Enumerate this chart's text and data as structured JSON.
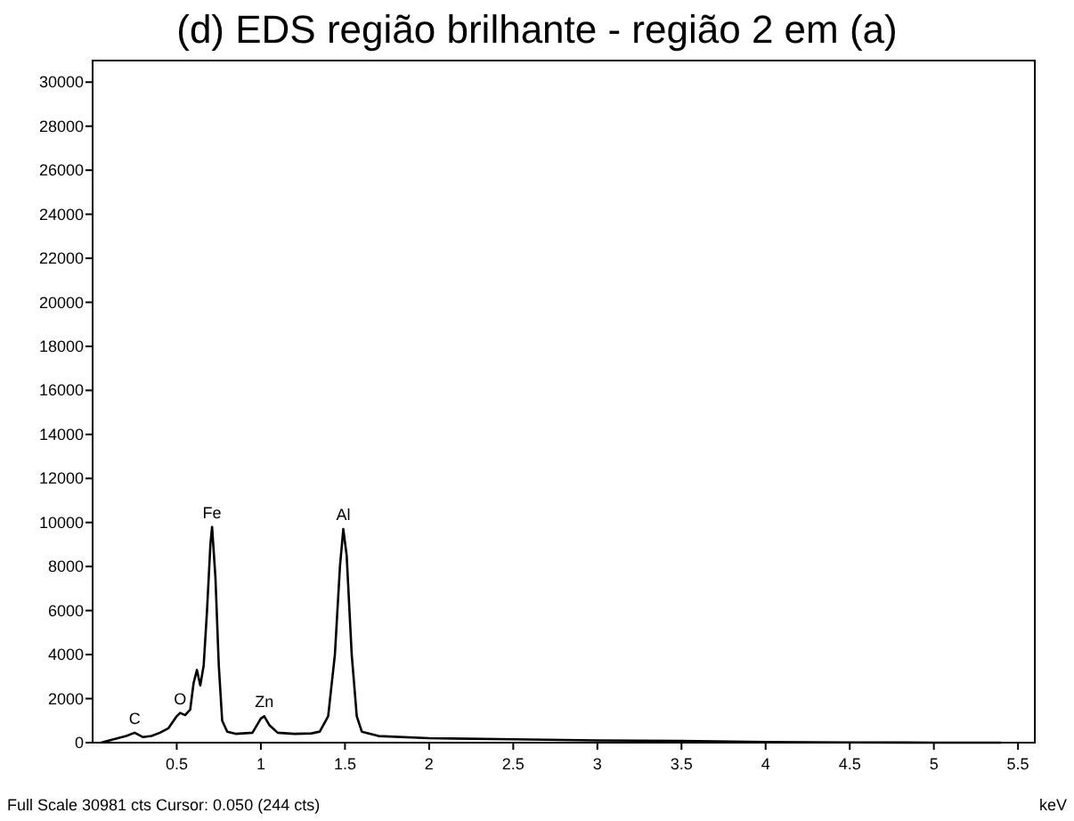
{
  "chart_data": {
    "type": "line",
    "title": "(d) EDS região brilhante - região 2 em (a)",
    "xlabel": "keV",
    "x": [
      0.05,
      0.1,
      0.2,
      0.25,
      0.3,
      0.35,
      0.4,
      0.45,
      0.5,
      0.52,
      0.55,
      0.58,
      0.6,
      0.62,
      0.64,
      0.66,
      0.68,
      0.7,
      0.71,
      0.73,
      0.75,
      0.77,
      0.8,
      0.85,
      0.95,
      1.0,
      1.02,
      1.05,
      1.1,
      1.2,
      1.3,
      1.35,
      1.4,
      1.44,
      1.47,
      1.49,
      1.51,
      1.54,
      1.57,
      1.6,
      1.7,
      2.0,
      2.5,
      3.0,
      3.5,
      4.0,
      4.5,
      5.0,
      5.4
    ],
    "series": [
      {
        "color": "#000000",
        "values": [
          0,
          100,
          300,
          450,
          250,
          300,
          450,
          650,
          1200,
          1350,
          1250,
          1500,
          2700,
          3300,
          2600,
          3500,
          6000,
          9000,
          9800,
          7500,
          3500,
          1000,
          500,
          400,
          450,
          1100,
          1200,
          800,
          450,
          400,
          420,
          500,
          1200,
          4000,
          8000,
          9700,
          8500,
          4000,
          1200,
          500,
          300,
          200,
          150,
          100,
          80,
          30,
          10,
          0,
          0
        ]
      }
    ],
    "xlim": [
      0,
      5.6
    ],
    "xticks": [
      0.5,
      1,
      1.5,
      2,
      2.5,
      3,
      3.5,
      4,
      4.5,
      5,
      5.5
    ],
    "ylim": [
      0,
      30981
    ],
    "yticks": [
      0,
      2000,
      4000,
      6000,
      8000,
      10000,
      12000,
      14000,
      16000,
      18000,
      20000,
      22000,
      24000,
      26000,
      28000,
      30000
    ],
    "grid": false,
    "marker": "none",
    "line_style": "solid",
    "annotations": [
      {
        "text": "C",
        "x": 0.25,
        "y": 450
      },
      {
        "text": "O",
        "x": 0.52,
        "y": 1350
      },
      {
        "text": "Fe",
        "x": 0.71,
        "y": 9800
      },
      {
        "text": "Zn",
        "x": 1.02,
        "y": 1200
      },
      {
        "text": "Al",
        "x": 1.49,
        "y": 9700
      },
      "Full Scale 30981 cts Cursor: 0.050  (244 cts)"
    ]
  }
}
